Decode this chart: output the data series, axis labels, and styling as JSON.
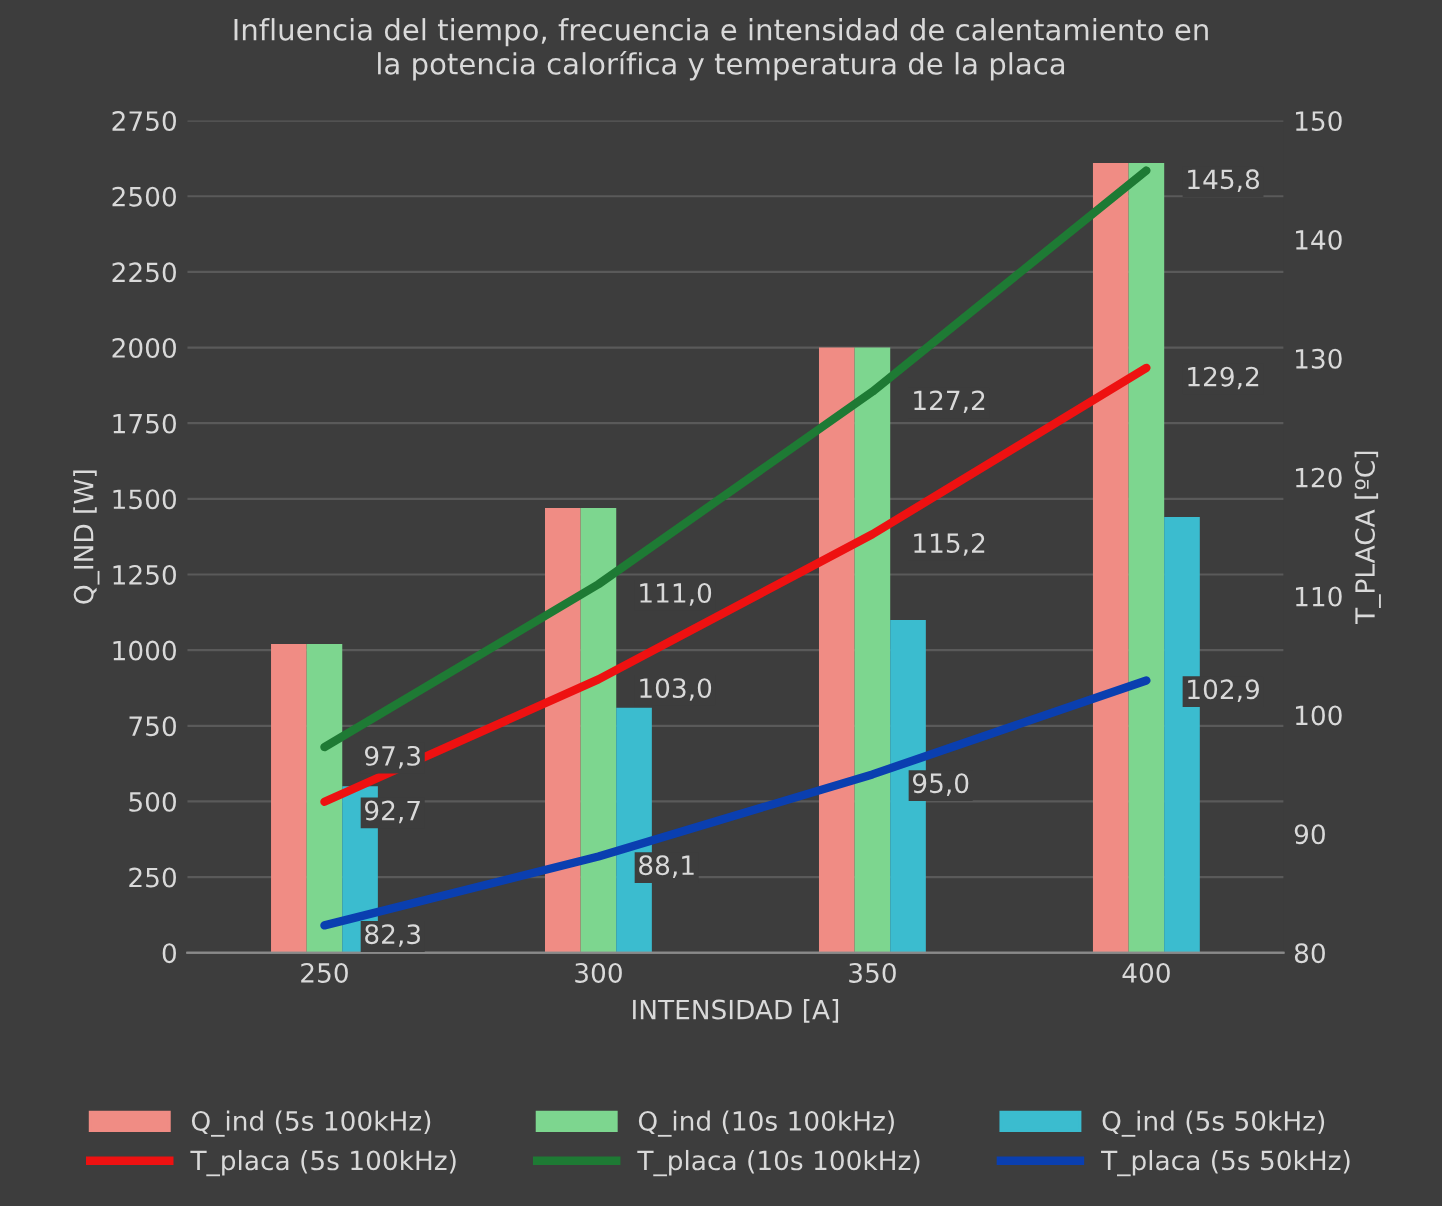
{
  "chart_data": {
    "type": "bar",
    "title": "Influencia del tiempo, frecuencia e intensidad de calentamiento en\nla potencia calorífica y temperatura de la placa",
    "xlabel": "INTENSIDAD [A]",
    "ylabel": "Q_IND [W]",
    "y2label": "T_PLACA [ºC]",
    "categories": [
      "250",
      "300",
      "350",
      "400"
    ],
    "ylim": [
      0,
      2750
    ],
    "yticks": [
      0,
      250,
      500,
      750,
      1000,
      1250,
      1500,
      1750,
      2000,
      2250,
      2500,
      2750
    ],
    "y2lim": [
      80,
      150
    ],
    "y2ticks": [
      80,
      90,
      100,
      110,
      120,
      130,
      140,
      150
    ],
    "grid": "y",
    "legend": "bottom",
    "series": [
      {
        "name": "Q_ind (5s 100kHz)",
        "color": "#f08c84",
        "values": [
          1020,
          1470,
          2000,
          2610
        ]
      },
      {
        "name": "Q_ind (10s 100kHz)",
        "color": "#7dd68f",
        "values": [
          1020,
          1470,
          2000,
          2610
        ]
      },
      {
        "name": "Q_ind (5s 50kHz)",
        "color": "#3bbccf",
        "values": [
          550,
          810,
          1100,
          1440
        ]
      },
      {
        "name": "T_placa (5s 100kHz)",
        "type": "line",
        "axis": "y2",
        "color": "#ee1111",
        "values": [
          92.7,
          103.0,
          115.2,
          129.2
        ],
        "value_labels": [
          "92,7",
          "103,0",
          "115,2",
          "129,2"
        ]
      },
      {
        "name": "T_placa (10s 100kHz)",
        "type": "line",
        "axis": "y2",
        "color": "#1e7a34",
        "values": [
          97.3,
          111.0,
          127.2,
          145.8
        ],
        "value_labels": [
          "97,3",
          "111,0",
          "127,2",
          "145,8"
        ]
      },
      {
        "name": "T_placa (5s 50kHz)",
        "type": "line",
        "axis": "y2",
        "color": "#0a3fb0",
        "values": [
          82.3,
          88.1,
          95.0,
          102.9
        ],
        "value_labels": [
          "82,3",
          "88,1",
          "95,0",
          "102,9"
        ]
      }
    ]
  }
}
